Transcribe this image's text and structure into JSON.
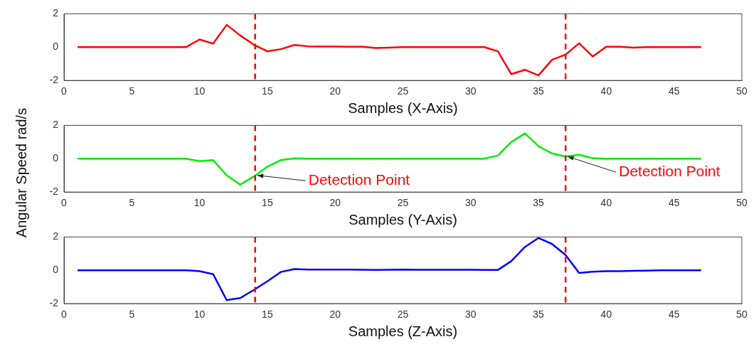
{
  "chart_data": [
    {
      "type": "line",
      "xlabel": "Samples (X-Axis)",
      "x": [
        1,
        2,
        3,
        4,
        5,
        6,
        7,
        8,
        9,
        10,
        11,
        12,
        13,
        14,
        15,
        16,
        17,
        18,
        19,
        20,
        21,
        22,
        23,
        24,
        25,
        26,
        27,
        28,
        29,
        30,
        31,
        32,
        33,
        34,
        35,
        36,
        37,
        38,
        39,
        40,
        41,
        42,
        43,
        44,
        45,
        46,
        47
      ],
      "xlim": [
        0,
        50
      ],
      "xticks": [
        0,
        5,
        10,
        15,
        20,
        25,
        30,
        35,
        40,
        45,
        50
      ],
      "ylim": [
        -2,
        2
      ],
      "yticks": [
        -2,
        0,
        2
      ],
      "grid": false,
      "legend": false,
      "marker": "none",
      "line_style": "solid",
      "series": [
        {
          "color": "#ff0000",
          "values": [
            0,
            0,
            0,
            0,
            0,
            0,
            0,
            0,
            0,
            0.46,
            0.21,
            1.34,
            0.7,
            0.15,
            -0.25,
            -0.12,
            0.13,
            0.05,
            0.03,
            0.03,
            0.02,
            0.02,
            -0.05,
            -0.03,
            0,
            0,
            0,
            0,
            0,
            0,
            0,
            -0.25,
            -1.62,
            -1.36,
            -1.7,
            -0.76,
            -0.45,
            0.23,
            -0.56,
            0.02,
            0.02,
            -0.03,
            0,
            0,
            0,
            0,
            0
          ]
        }
      ],
      "ref_lines": [
        {
          "axis": "x",
          "value": 14.1,
          "color": "#ff0000",
          "line_style": "dashed"
        },
        {
          "axis": "x",
          "value": 37,
          "color": "#ff0000",
          "line_style": "dashed"
        }
      ]
    },
    {
      "type": "line",
      "xlabel": "Samples (Y-Axis)",
      "ylabel": "Angular Speed rad/s",
      "x": [
        1,
        2,
        3,
        4,
        5,
        6,
        7,
        8,
        9,
        10,
        11,
        12,
        13,
        14,
        15,
        16,
        17,
        18,
        19,
        20,
        21,
        22,
        23,
        24,
        25,
        26,
        27,
        28,
        29,
        30,
        31,
        32,
        33,
        34,
        35,
        36,
        37,
        38,
        39,
        40,
        41,
        42,
        43,
        44,
        45,
        46,
        47
      ],
      "xlim": [
        0,
        50
      ],
      "xticks": [
        0,
        5,
        10,
        15,
        20,
        25,
        30,
        35,
        40,
        45,
        50
      ],
      "ylim": [
        -2,
        2
      ],
      "yticks": [
        -2,
        0,
        2
      ],
      "grid": false,
      "legend": false,
      "marker": "none",
      "line_style": "solid",
      "series": [
        {
          "color": "#00ee00",
          "values": [
            0,
            0,
            0,
            0,
            0,
            0,
            0,
            0,
            0,
            -0.15,
            -0.08,
            -1.0,
            -1.55,
            -1.07,
            -0.48,
            -0.08,
            0.02,
            0,
            0,
            0,
            0,
            0,
            0,
            0,
            0,
            0,
            0,
            0,
            0,
            0,
            0,
            0.19,
            1.0,
            1.52,
            0.75,
            0.32,
            0.13,
            0.24,
            0.03,
            0,
            0,
            0,
            0,
            0,
            0,
            0,
            0
          ]
        }
      ],
      "ref_lines": [
        {
          "axis": "x",
          "value": 14.1,
          "color": "#ff0000",
          "line_style": "dashed"
        },
        {
          "axis": "x",
          "value": 37,
          "color": "#ff0000",
          "line_style": "dashed"
        }
      ],
      "annotations": [
        {
          "text": "Detection Point",
          "x": 14.1,
          "y": -1.0
        },
        {
          "text": "Detection Point",
          "x": 37,
          "y": 0.13
        }
      ]
    },
    {
      "type": "line",
      "xlabel": "Samples (Z-Axis)",
      "x": [
        1,
        2,
        3,
        4,
        5,
        6,
        7,
        8,
        9,
        10,
        11,
        12,
        13,
        14,
        15,
        16,
        17,
        18,
        19,
        20,
        21,
        22,
        23,
        24,
        25,
        26,
        27,
        28,
        29,
        30,
        31,
        32,
        33,
        34,
        35,
        36,
        37,
        38,
        39,
        40,
        41,
        42,
        43,
        44,
        45,
        46,
        47
      ],
      "xlim": [
        0,
        50
      ],
      "xticks": [
        0,
        5,
        10,
        15,
        20,
        25,
        30,
        35,
        40,
        45,
        50
      ],
      "ylim": [
        -2,
        2
      ],
      "yticks": [
        -2,
        0,
        2
      ],
      "grid": false,
      "legend": false,
      "marker": "none",
      "line_style": "solid",
      "series": [
        {
          "color": "#0000ff",
          "values": [
            0,
            0,
            0,
            0,
            0,
            0,
            0,
            0,
            0,
            -0.05,
            -0.23,
            -1.79,
            -1.66,
            -1.18,
            -0.66,
            -0.1,
            0.08,
            0.05,
            0.05,
            0.05,
            0.05,
            0.03,
            0.02,
            0.03,
            0.05,
            0.03,
            0.03,
            0.03,
            0.03,
            0.03,
            0.02,
            0.02,
            0.55,
            1.4,
            1.94,
            1.58,
            0.92,
            -0.16,
            -0.08,
            -0.05,
            -0.05,
            -0.03,
            -0.02,
            0,
            0,
            0,
            0
          ]
        }
      ],
      "ref_lines": [
        {
          "axis": "x",
          "value": 14.1,
          "color": "#ff0000",
          "line_style": "dashed"
        },
        {
          "axis": "x",
          "value": 37,
          "color": "#ff0000",
          "line_style": "dashed"
        }
      ]
    }
  ]
}
